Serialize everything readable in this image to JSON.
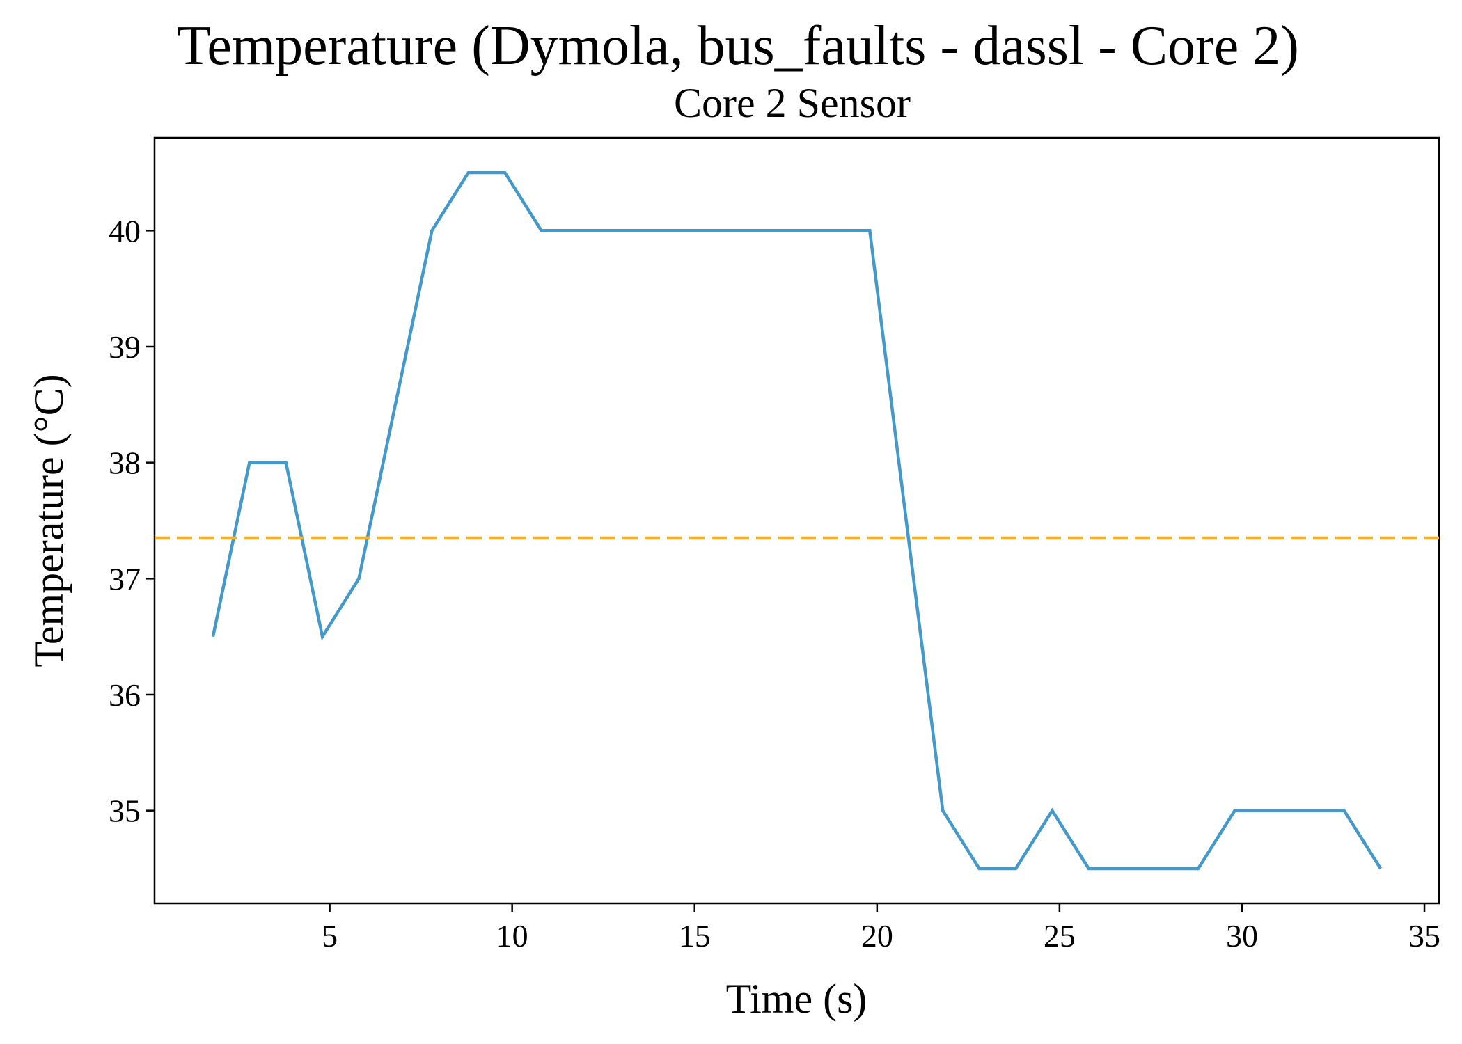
{
  "chart_data": {
    "type": "line",
    "title": "Temperature (Dymola, bus_faults - dassl - Core 2)",
    "subtitle": "Core 2 Sensor",
    "xlabel": "Time (s)",
    "ylabel": "Temperature (°C)",
    "xlim": [
      0.2,
      35.4
    ],
    "ylim": [
      34.2,
      40.8
    ],
    "xticks": [
      5,
      10,
      15,
      20,
      25,
      30,
      35
    ],
    "yticks": [
      35,
      36,
      37,
      38,
      39,
      40
    ],
    "grid": false,
    "series": [
      {
        "color": "#4399c9",
        "style": "solid",
        "x": [
          1.8,
          2.8,
          3.8,
          4.8,
          5.8,
          6.8,
          7.8,
          8.8,
          9.8,
          10.8,
          11.8,
          12.8,
          13.8,
          14.8,
          15.8,
          16.8,
          17.8,
          18.8,
          19.8,
          20.8,
          21.8,
          22.8,
          23.8,
          24.8,
          25.8,
          26.8,
          27.8,
          28.8,
          29.8,
          30.8,
          31.8,
          32.8,
          33.8
        ],
        "y": [
          36.5,
          38.0,
          38.0,
          36.5,
          37.0,
          38.5,
          40.0,
          40.5,
          40.5,
          40.0,
          40.0,
          40.0,
          40.0,
          40.0,
          40.0,
          40.0,
          40.0,
          40.0,
          40.0,
          37.5,
          35.0,
          34.5,
          34.5,
          35.0,
          34.5,
          34.5,
          34.5,
          34.5,
          35.0,
          35.0,
          35.0,
          35.0,
          34.5
        ]
      },
      {
        "color": "#f6b22f",
        "style": "dashed",
        "x": [
          0.2,
          35.4
        ],
        "y": [
          37.35,
          37.35
        ]
      }
    ]
  }
}
